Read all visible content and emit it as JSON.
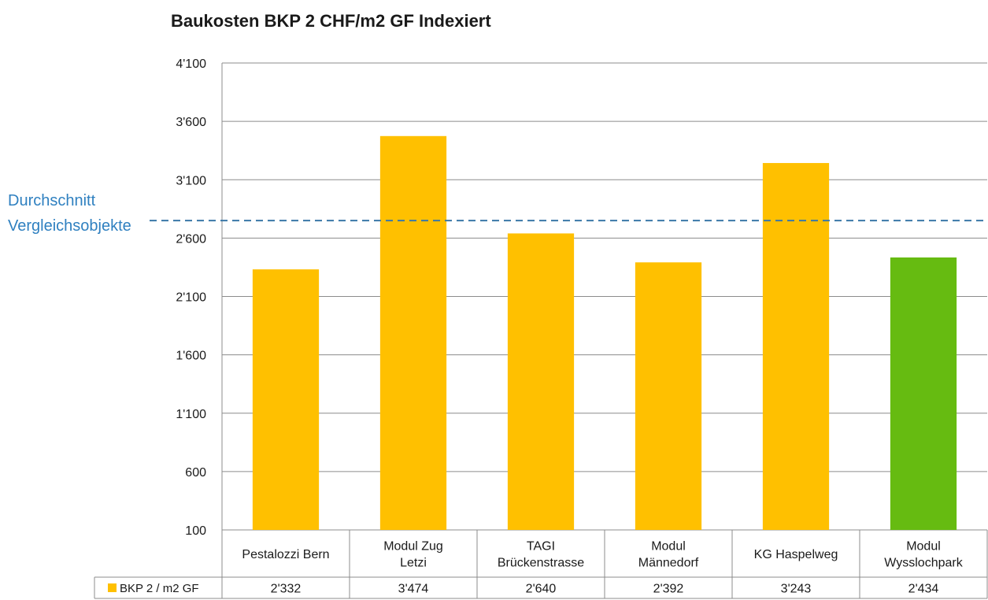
{
  "chart_data": {
    "type": "bar",
    "title": "Baukosten  BKP 2 CHF/m2 GF Indexiert",
    "categories": [
      [
        "Pestalozzi Bern"
      ],
      [
        "Modul Zug",
        "Letzi"
      ],
      [
        "TAGI",
        "Brückenstrasse"
      ],
      [
        "Modul",
        "Männedorf"
      ],
      [
        "KG Haspelweg"
      ],
      [
        "Modul",
        "Wysslochpark"
      ]
    ],
    "series": [
      {
        "name": "BKP 2 / m2 GF",
        "values": [
          2332,
          3474,
          2640,
          2392,
          3243,
          2434
        ],
        "value_labels": [
          "2'332",
          "3'474",
          "2'640",
          "2'392",
          "3'243",
          "2'434"
        ],
        "color": "#ffc000"
      }
    ],
    "highlight": {
      "index": 5,
      "color": "#66bb11"
    },
    "y_ticks": [
      100,
      600,
      1100,
      1600,
      2100,
      2600,
      3100,
      3600,
      4100
    ],
    "y_tick_labels": [
      "100",
      "600",
      "1'100",
      "1'600",
      "2'100",
      "2'600",
      "3'100",
      "3'600",
      "4'100"
    ],
    "ylim": [
      100,
      4100
    ],
    "grid": true,
    "data_table": true,
    "reference_line": {
      "value": 2750,
      "label_lines": [
        "Durchschnitt",
        "Vergleichsobjekte"
      ],
      "color": "#3a78a8",
      "text_color": "#2f80c0",
      "style": "dashed"
    }
  }
}
